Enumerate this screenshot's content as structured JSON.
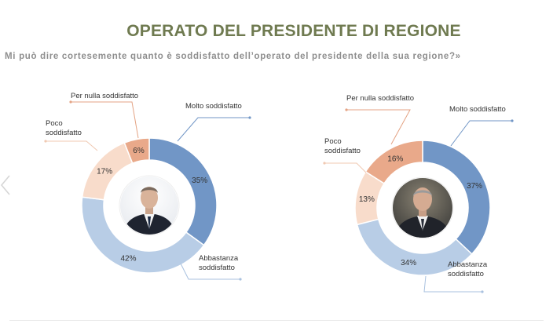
{
  "header": {
    "title": "OPERATO DEL PRESIDENTE DI REGIONE",
    "subtitle": "Mi può dire cortesemente quanto è soddisfatto dell’operato del presidente della sua regione?»"
  },
  "colors": {
    "molto": "#7196c6",
    "abbastanza": "#b8cde6",
    "poco": "#f8dccb",
    "per_nulla": "#e9a98a",
    "title": "#6f7a50"
  },
  "chart_data": [
    {
      "type": "pie",
      "donut": true,
      "categories": [
        "Molto soddisfatto",
        "Abbastanza soddisfatto",
        "Poco soddisfatto",
        "Per nulla soddisfatto"
      ],
      "values": [
        35,
        42,
        17,
        6
      ],
      "value_labels": [
        "35%",
        "42%",
        "17%",
        "6%"
      ],
      "label_lines": [
        [
          "Molto soddisfatto"
        ],
        [
          "Abbastanza",
          "soddisfatto"
        ],
        [
          "Poco",
          "soddisfatto"
        ],
        [
          "Per nulla soddisfatto"
        ]
      ]
    },
    {
      "type": "pie",
      "donut": true,
      "categories": [
        "Molto soddisfatto",
        "Abbastanza soddisfatto",
        "Poco soddisfatto",
        "Per nulla soddisfatto"
      ],
      "values": [
        37,
        34,
        13,
        16
      ],
      "value_labels": [
        "37%",
        "34%",
        "13%",
        "16%"
      ],
      "label_lines": [
        [
          "Molto soddisfatto"
        ],
        [
          "Abbastanza",
          "soddisfatto"
        ],
        [
          "Poco",
          "soddisfatto"
        ],
        [
          "Per nulla soddisfatto"
        ]
      ]
    }
  ]
}
